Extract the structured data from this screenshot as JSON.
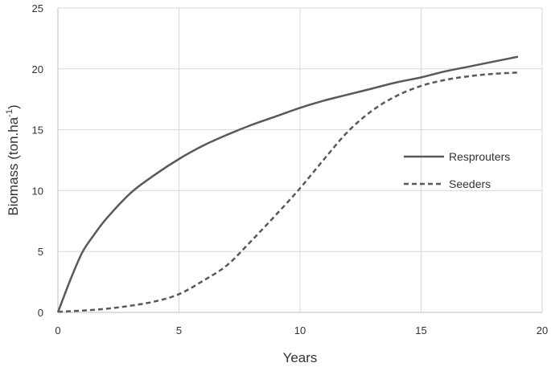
{
  "chart_data": {
    "type": "line",
    "xlabel": "Years",
    "ylabel": "Biomass (ton.ha",
    "ylabel_sup": "-1",
    "ylabel_close": ")",
    "xlim": [
      0,
      20
    ],
    "ylim": [
      0,
      25
    ],
    "x_ticks": [
      "0",
      "5",
      "10",
      "15",
      "20"
    ],
    "y_ticks": [
      "0",
      "5",
      "10",
      "15",
      "20",
      "25"
    ],
    "grid": true,
    "legend_position": "right",
    "series": [
      {
        "name": "Resprouters",
        "style": "solid",
        "color": "#595959",
        "x": [
          0,
          0.5,
          1,
          1.5,
          2,
          3,
          4,
          5,
          6,
          7,
          8,
          9,
          10,
          11,
          12,
          13,
          14,
          15,
          16,
          17,
          18,
          19
        ],
        "y": [
          0,
          2.6,
          4.9,
          6.4,
          7.7,
          9.8,
          11.3,
          12.6,
          13.7,
          14.6,
          15.4,
          16.1,
          16.8,
          17.4,
          17.9,
          18.4,
          18.9,
          19.3,
          19.8,
          20.2,
          20.6,
          21.0
        ]
      },
      {
        "name": "Seeders",
        "style": "dashed",
        "color": "#595959",
        "x": [
          0,
          1,
          2,
          3,
          4,
          5,
          6,
          7,
          8,
          9,
          10,
          11,
          12,
          13,
          14,
          15,
          16,
          17,
          18,
          19
        ],
        "y": [
          0.05,
          0.15,
          0.3,
          0.55,
          0.9,
          1.5,
          2.6,
          3.9,
          5.9,
          8.0,
          10.2,
          12.6,
          14.9,
          16.6,
          17.8,
          18.6,
          19.1,
          19.4,
          19.6,
          19.7
        ]
      }
    ]
  }
}
